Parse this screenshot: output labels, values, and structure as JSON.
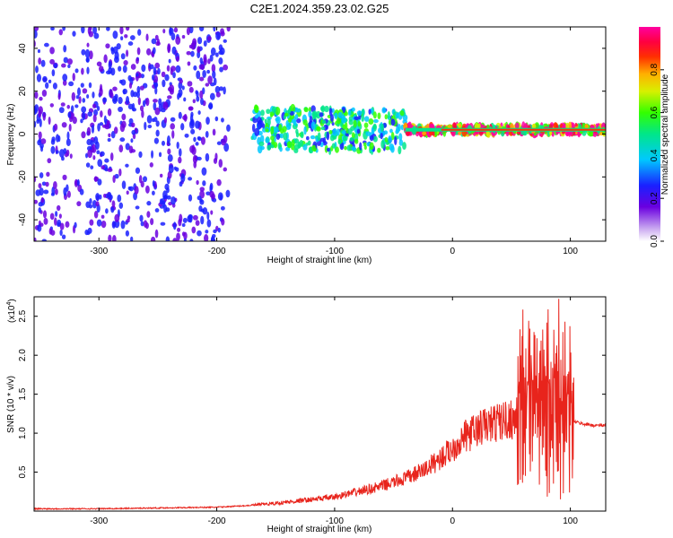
{
  "title": "C2E1.2024.359.23.02.G25",
  "chart_data": [
    {
      "type": "heatmap",
      "xlabel": "Height of straight line (km)",
      "ylabel": "Frequency (Hz)",
      "xlim": [
        -355,
        130
      ],
      "ylim": [
        -50,
        50
      ],
      "xticks": [
        -300,
        -200,
        -100,
        0,
        100
      ],
      "yticks": [
        -40,
        -20,
        0,
        20,
        40
      ],
      "colorbar": {
        "label": "Normalized spectral amplitude",
        "range": [
          0,
          1
        ],
        "ticks": [
          0.0,
          0.2,
          0.4,
          0.6,
          0.8
        ],
        "tick_labels": [
          "0.0",
          "0.2",
          "0.4",
          "0.6",
          "0.8"
        ]
      },
      "regions": [
        {
          "x_from": -355,
          "x_to": -190,
          "freq_spread": 50,
          "amplitude": 0.2,
          "desc": "broadband noise"
        },
        {
          "x_from": -170,
          "x_to": -40,
          "freq_center": 2,
          "freq_spread": 10,
          "amplitude": 0.45
        },
        {
          "x_from": -40,
          "x_to": 130,
          "freq_center": 2,
          "freq_spread": 2,
          "amplitude": 0.95
        }
      ]
    },
    {
      "type": "line",
      "xlabel": "Height of straight line (km)",
      "ylabel": "SNR (10 * v/v)",
      "y_multiplier": "(x10",
      "y_multiplier_exp": "4",
      "y_multiplier_close": ")",
      "xlim": [
        -355,
        130
      ],
      "ylim": [
        0,
        2.75
      ],
      "xticks": [
        -300,
        -200,
        -100,
        0,
        100
      ],
      "yticks": [
        0.5,
        1.0,
        1.5,
        2.0,
        2.5
      ],
      "ytick_labels": [
        "0.5",
        "1.0",
        "1.5",
        "2.0",
        "2.5"
      ],
      "series": [
        {
          "color": "#e8241c",
          "x": [
            -355,
            -300,
            -250,
            -200,
            -175,
            -150,
            -125,
            -100,
            -80,
            -60,
            -40,
            -25,
            -10,
            0,
            10,
            25,
            40,
            55,
            58,
            62,
            66,
            70,
            75,
            80,
            85,
            90,
            95,
            100,
            103,
            110,
            120,
            130
          ],
          "y": [
            0.03,
            0.03,
            0.04,
            0.05,
            0.07,
            0.1,
            0.14,
            0.18,
            0.25,
            0.32,
            0.42,
            0.52,
            0.68,
            0.8,
            0.95,
            1.08,
            1.15,
            1.2,
            2.55,
            0.6,
            2.4,
            0.3,
            2.6,
            0.2,
            2.75,
            0.5,
            2.2,
            0.4,
            1.15,
            1.12,
            1.1,
            1.1
          ]
        }
      ]
    }
  ],
  "colors": {
    "line": "#e8241c",
    "axis": "#000000"
  }
}
